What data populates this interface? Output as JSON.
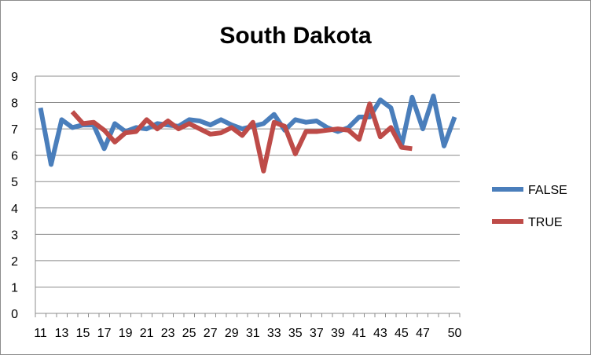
{
  "chart_data": {
    "type": "line",
    "title": "South Dakota",
    "xlabel": "",
    "ylabel": "",
    "x_ticks": [
      "11",
      "13",
      "15",
      "17",
      "19",
      "21",
      "23",
      "25",
      "27",
      "29",
      "31",
      "33",
      "35",
      "37",
      "39",
      "41",
      "43",
      "45",
      "47",
      "50"
    ],
    "x": [
      11,
      12,
      13,
      14,
      15,
      16,
      17,
      18,
      19,
      20,
      21,
      22,
      23,
      24,
      25,
      26,
      27,
      28,
      29,
      30,
      31,
      32,
      33,
      34,
      35,
      36,
      37,
      38,
      39,
      40,
      41,
      42,
      43,
      44,
      45,
      46,
      47,
      48,
      49,
      50
    ],
    "ylim": [
      0,
      9
    ],
    "y_ticks": [
      0,
      1,
      2,
      3,
      4,
      5,
      6,
      7,
      8,
      9
    ],
    "grid": true,
    "legend_position": "right",
    "series": [
      {
        "name": "FALSE",
        "color": "#4a7ebb",
        "values": [
          7.8,
          5.65,
          7.35,
          7.05,
          7.15,
          7.15,
          6.25,
          7.2,
          6.9,
          7.05,
          7.0,
          7.2,
          7.15,
          7.1,
          7.35,
          7.3,
          7.15,
          7.35,
          7.15,
          7.0,
          7.1,
          7.2,
          7.55,
          6.95,
          7.35,
          7.25,
          7.3,
          7.05,
          6.9,
          7.05,
          7.45,
          7.45,
          8.1,
          7.8,
          6.35,
          8.2,
          7.0,
          8.25,
          6.35,
          7.45
        ]
      },
      {
        "name": "TRUE",
        "color": "#be4b48",
        "values": [
          null,
          null,
          null,
          7.65,
          7.2,
          7.25,
          6.95,
          6.5,
          6.85,
          6.9,
          7.35,
          7.0,
          7.3,
          7.0,
          7.2,
          7.0,
          6.8,
          6.85,
          7.05,
          6.75,
          7.25,
          5.4,
          7.25,
          7.1,
          6.05,
          6.9,
          6.9,
          6.95,
          7.0,
          6.95,
          6.6,
          7.95,
          6.7,
          7.05,
          6.3,
          6.25,
          null,
          null,
          null,
          null
        ]
      }
    ]
  }
}
